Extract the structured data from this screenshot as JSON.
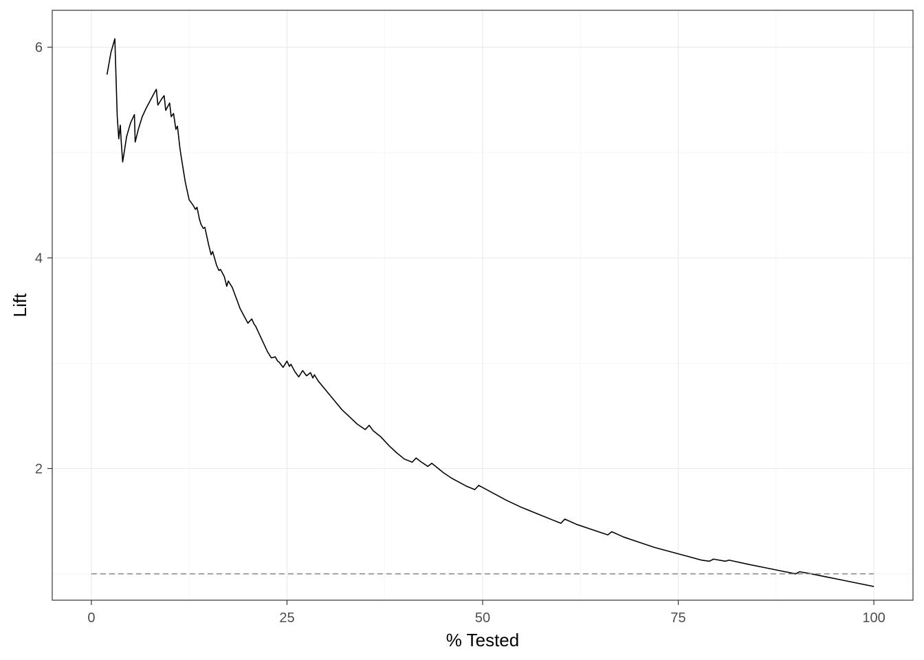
{
  "chart_data": {
    "type": "line",
    "title": "",
    "xlabel": "% Tested",
    "ylabel": "Lift",
    "xlim": [
      -5,
      105
    ],
    "ylim": [
      0.75,
      6.35
    ],
    "x_ticks": [
      0,
      25,
      50,
      75,
      100
    ],
    "x_tick_labels": [
      "0",
      "25",
      "50",
      "75",
      "100"
    ],
    "y_ticks": [
      2,
      4,
      6
    ],
    "y_tick_labels": [
      "2",
      "4",
      "6"
    ],
    "grid": true,
    "legend": "none",
    "series": [
      {
        "style": "solid",
        "color": "#000000",
        "x": [
          2.0,
          2.5,
          3.0,
          3.3,
          3.5,
          3.7,
          3.8,
          4.0,
          4.5,
          5.0,
          5.5,
          5.6,
          6.0,
          6.5,
          7.0,
          7.5,
          8.0,
          8.3,
          8.5,
          9.0,
          9.3,
          9.5,
          10.0,
          10.2,
          10.5,
          10.8,
          11.0,
          11.3,
          11.5,
          12.0,
          12.5,
          13.0,
          13.3,
          13.5,
          13.8,
          14.0,
          14.3,
          14.5,
          15.0,
          15.3,
          15.5,
          16.0,
          16.3,
          16.5,
          17.0,
          17.3,
          17.5,
          18.0,
          18.5,
          19.0,
          19.5,
          20.0,
          20.5,
          20.8,
          21.0,
          21.5,
          22.0,
          22.5,
          23.0,
          23.5,
          23.8,
          24.0,
          24.5,
          25.0,
          25.3,
          25.5,
          26.0,
          26.5,
          27.0,
          27.5,
          28.0,
          28.3,
          28.5,
          29.0,
          30.0,
          31.0,
          32.0,
          33.0,
          34.0,
          35.0,
          35.5,
          36.0,
          37.0,
          38.0,
          39.0,
          40.0,
          41.0,
          41.5,
          42.0,
          43.0,
          43.5,
          44.0,
          45.0,
          46.0,
          47.0,
          48.0,
          49.0,
          49.5,
          50.0,
          51.0,
          52.0,
          53.0,
          55.0,
          57.0,
          59.0,
          60.0,
          60.5,
          62.0,
          64.0,
          66.0,
          66.5,
          68.0,
          70.0,
          72.0,
          74.0,
          76.0,
          78.0,
          79.0,
          79.5,
          81.0,
          81.5,
          84.0,
          86.0,
          88.0,
          90.0,
          90.5,
          92.0,
          94.0,
          96.0,
          98.0,
          100.0
        ],
        "y": [
          5.74,
          5.95,
          6.08,
          5.35,
          5.13,
          5.26,
          5.12,
          4.91,
          5.15,
          5.28,
          5.36,
          5.1,
          5.22,
          5.34,
          5.42,
          5.49,
          5.56,
          5.6,
          5.45,
          5.51,
          5.54,
          5.4,
          5.47,
          5.34,
          5.37,
          5.22,
          5.25,
          5.05,
          4.95,
          4.72,
          4.55,
          4.5,
          4.46,
          4.48,
          4.37,
          4.32,
          4.28,
          4.29,
          4.12,
          4.03,
          4.06,
          3.93,
          3.88,
          3.89,
          3.82,
          3.73,
          3.78,
          3.72,
          3.62,
          3.52,
          3.45,
          3.38,
          3.42,
          3.37,
          3.35,
          3.27,
          3.19,
          3.11,
          3.05,
          3.06,
          3.02,
          3.01,
          2.96,
          3.02,
          2.97,
          2.99,
          2.92,
          2.87,
          2.93,
          2.88,
          2.91,
          2.86,
          2.89,
          2.83,
          2.74,
          2.65,
          2.56,
          2.49,
          2.42,
          2.37,
          2.41,
          2.36,
          2.3,
          2.22,
          2.15,
          2.09,
          2.06,
          2.1,
          2.07,
          2.02,
          2.05,
          2.02,
          1.96,
          1.91,
          1.87,
          1.83,
          1.8,
          1.84,
          1.82,
          1.78,
          1.74,
          1.7,
          1.63,
          1.57,
          1.51,
          1.48,
          1.52,
          1.47,
          1.42,
          1.37,
          1.4,
          1.35,
          1.3,
          1.25,
          1.21,
          1.17,
          1.13,
          1.12,
          1.14,
          1.12,
          1.13,
          1.09,
          1.06,
          1.03,
          1.0,
          1.02,
          1.0,
          0.97,
          0.94,
          0.91,
          0.88
        ]
      },
      {
        "style": "dashed",
        "color": "#7f7f7f",
        "x": [
          0,
          100
        ],
        "y": [
          1.0,
          1.0
        ]
      }
    ]
  }
}
